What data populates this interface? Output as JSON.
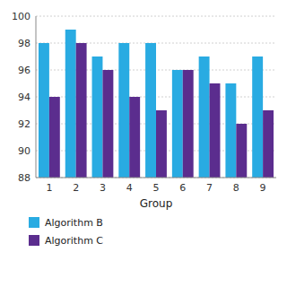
{
  "chart_data": {
    "type": "bar",
    "x_label": "Group",
    "categories": [
      "1",
      "2",
      "3",
      "4",
      "5",
      "6",
      "7",
      "8",
      "9"
    ],
    "series": [
      {
        "name": "Algorithm B",
        "color": "#29ABE2",
        "values": [
          98,
          99,
          97,
          98,
          98,
          96,
          97,
          95,
          97
        ]
      },
      {
        "name": "Algorithm C",
        "color": "#5B2D8E",
        "values": [
          94,
          98,
          96,
          94,
          93,
          96,
          95,
          92,
          93
        ]
      }
    ],
    "ylim": [
      88,
      100
    ],
    "yticks": [
      88,
      90,
      92,
      94,
      96,
      98,
      100
    ],
    "grid": true,
    "legend": "lower left"
  }
}
